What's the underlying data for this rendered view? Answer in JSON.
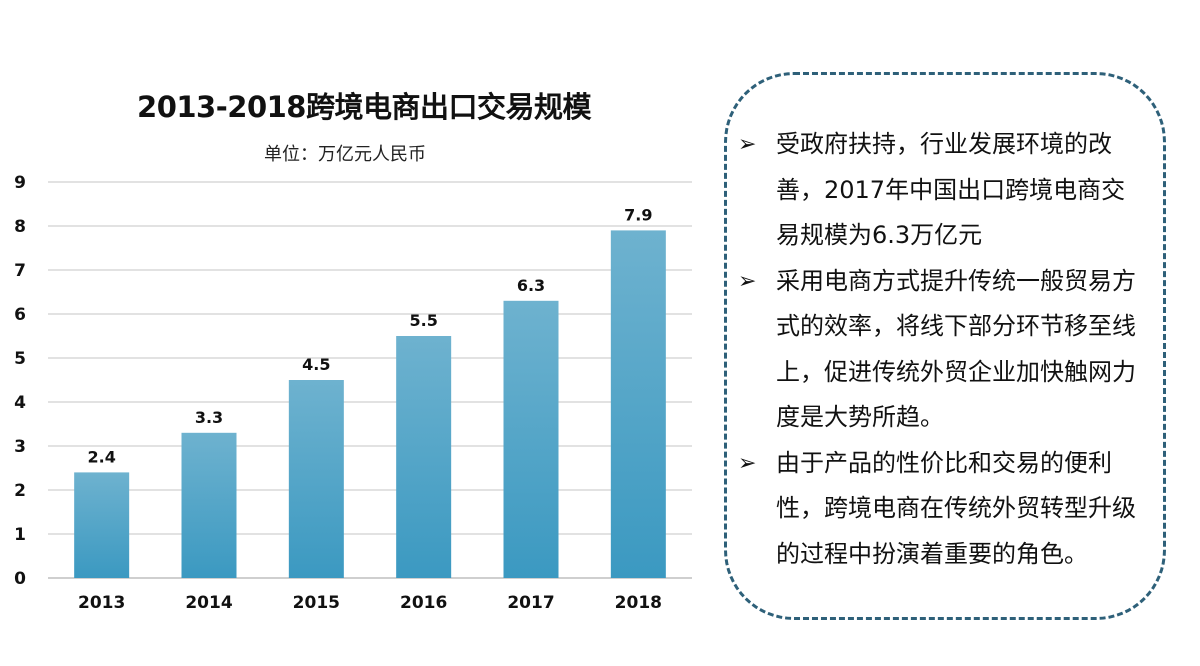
{
  "chart_data": {
    "type": "bar",
    "title": "2013-2018跨境电商出口交易规模",
    "subtitle": "单位：万亿元人民币",
    "categories": [
      "2013",
      "2014",
      "2015",
      "2016",
      "2017",
      "2018"
    ],
    "values": [
      2.4,
      3.3,
      4.5,
      5.5,
      6.3,
      7.9
    ],
    "data_labels": [
      "2.4",
      "3.3",
      "4.5",
      "5.5",
      "6.3",
      "7.9"
    ],
    "yticks": [
      "0",
      "1",
      "2",
      "3",
      "4",
      "5",
      "6",
      "7",
      "8",
      "9"
    ],
    "ylim": [
      0,
      9
    ],
    "xlabel": "",
    "ylabel": "",
    "grid": true,
    "bar_color_top": "#6eb2cf",
    "bar_color_bottom": "#3b99c1"
  },
  "notes": {
    "border_color": "#2e6079",
    "bullet": "➢",
    "items": [
      "受政府扶持，行业发展环境的改善，2017年中国出口跨境电商交易规模为6.3万亿元",
      "采用电商方式提升传统一般贸易方式的效率，将线下部分环节移至线上，促进传统外贸企业加快触网力度是大势所趋。",
      "由于产品的性价比和交易的便利性，跨境电商在传统外贸转型升级的过程中扮演着重要的角色。"
    ]
  }
}
